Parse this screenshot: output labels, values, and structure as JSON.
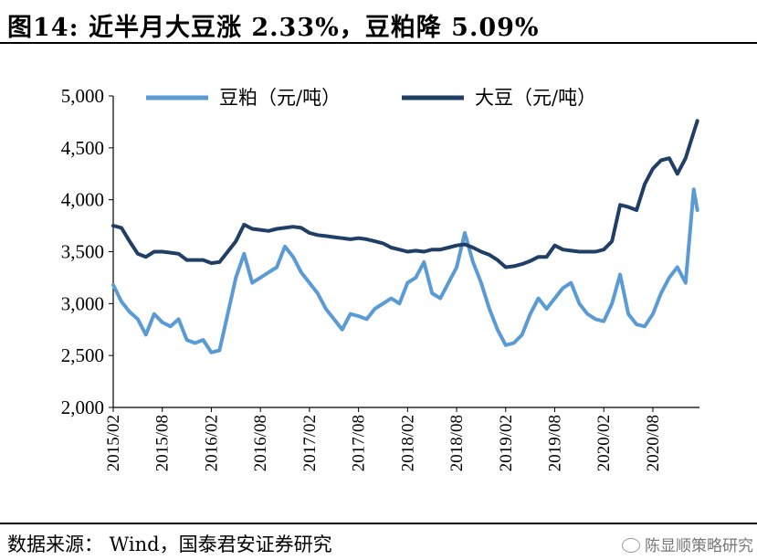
{
  "title": "图14: 近半月大豆涨 2.33%，豆粕降 5.09%",
  "source": "数据来源： Wind，国泰君安证券研究",
  "watermark": "陈显顺策略研究",
  "chart_data": {
    "type": "line",
    "ylim": [
      2000,
      5000
    ],
    "yticks": [
      2000,
      2500,
      3000,
      3500,
      4000,
      4500,
      5000
    ],
    "ytick_labels": [
      "2,000",
      "2,500",
      "3,000",
      "3,500",
      "4,000",
      "4,500",
      "5,000"
    ],
    "xticks": [
      "2015/02",
      "2015/08",
      "2016/02",
      "2016/08",
      "2017/02",
      "2017/08",
      "2018/02",
      "2018/08",
      "2019/02",
      "2019/08",
      "2020/02",
      "2020/08"
    ],
    "legend_position": "top",
    "series": [
      {
        "name": "豆粕（元/吨）",
        "color": "#5b9bd5",
        "points": [
          [
            "2015/02",
            3180
          ],
          [
            "2015/03",
            3020
          ],
          [
            "2015/04",
            2920
          ],
          [
            "2015/05",
            2850
          ],
          [
            "2015/06",
            2700
          ],
          [
            "2015/07",
            2900
          ],
          [
            "2015/08",
            2820
          ],
          [
            "2015/09",
            2780
          ],
          [
            "2015/10",
            2850
          ],
          [
            "2015/11",
            2650
          ],
          [
            "2015/12",
            2620
          ],
          [
            "2016/01",
            2650
          ],
          [
            "2016/02",
            2530
          ],
          [
            "2016/03",
            2550
          ],
          [
            "2016/04",
            2900
          ],
          [
            "2016/05",
            3250
          ],
          [
            "2016/06",
            3480
          ],
          [
            "2016/07",
            3200
          ],
          [
            "2016/08",
            3250
          ],
          [
            "2016/09",
            3300
          ],
          [
            "2016/10",
            3350
          ],
          [
            "2016/11",
            3550
          ],
          [
            "2016/12",
            3450
          ],
          [
            "2017/01",
            3300
          ],
          [
            "2017/02",
            3200
          ],
          [
            "2017/03",
            3100
          ],
          [
            "2017/04",
            2950
          ],
          [
            "2017/05",
            2850
          ],
          [
            "2017/06",
            2750
          ],
          [
            "2017/07",
            2900
          ],
          [
            "2017/08",
            2880
          ],
          [
            "2017/09",
            2850
          ],
          [
            "2017/10",
            2950
          ],
          [
            "2017/11",
            3000
          ],
          [
            "2017/12",
            3050
          ],
          [
            "2018/01",
            3000
          ],
          [
            "2018/02",
            3200
          ],
          [
            "2018/03",
            3250
          ],
          [
            "2018/04",
            3400
          ],
          [
            "2018/05",
            3100
          ],
          [
            "2018/06",
            3050
          ],
          [
            "2018/07",
            3200
          ],
          [
            "2018/08",
            3350
          ],
          [
            "2018/09",
            3680
          ],
          [
            "2018/10",
            3400
          ],
          [
            "2018/11",
            3200
          ],
          [
            "2018/12",
            2950
          ],
          [
            "2019/01",
            2750
          ],
          [
            "2019/02",
            2600
          ],
          [
            "2019/03",
            2620
          ],
          [
            "2019/04",
            2700
          ],
          [
            "2019/05",
            2900
          ],
          [
            "2019/06",
            3050
          ],
          [
            "2019/07",
            2950
          ],
          [
            "2019/08",
            3050
          ],
          [
            "2019/09",
            3150
          ],
          [
            "2019/10",
            3200
          ],
          [
            "2019/11",
            3000
          ],
          [
            "2019/12",
            2900
          ],
          [
            "2020/01",
            2850
          ],
          [
            "2020/02",
            2830
          ],
          [
            "2020/03",
            3000
          ],
          [
            "2020/04",
            3280
          ],
          [
            "2020/05",
            2900
          ],
          [
            "2020/06",
            2800
          ],
          [
            "2020/07",
            2780
          ],
          [
            "2020/08",
            2900
          ],
          [
            "2020/09",
            3100
          ],
          [
            "2020/10",
            3250
          ],
          [
            "2020/11",
            3350
          ],
          [
            "2020/12",
            3200
          ],
          [
            "2021/01",
            4100
          ],
          [
            "2021/01",
            3900
          ]
        ]
      },
      {
        "name": "大豆（元/吨）",
        "color": "#1f3f66",
        "points": [
          [
            "2015/02",
            3750
          ],
          [
            "2015/03",
            3730
          ],
          [
            "2015/04",
            3600
          ],
          [
            "2015/05",
            3480
          ],
          [
            "2015/06",
            3450
          ],
          [
            "2015/07",
            3500
          ],
          [
            "2015/08",
            3500
          ],
          [
            "2015/09",
            3490
          ],
          [
            "2015/10",
            3480
          ],
          [
            "2015/11",
            3420
          ],
          [
            "2015/12",
            3420
          ],
          [
            "2016/01",
            3420
          ],
          [
            "2016/02",
            3390
          ],
          [
            "2016/03",
            3400
          ],
          [
            "2016/04",
            3500
          ],
          [
            "2016/05",
            3600
          ],
          [
            "2016/06",
            3760
          ],
          [
            "2016/07",
            3720
          ],
          [
            "2016/08",
            3710
          ],
          [
            "2016/09",
            3700
          ],
          [
            "2016/10",
            3720
          ],
          [
            "2016/11",
            3730
          ],
          [
            "2016/12",
            3740
          ],
          [
            "2017/01",
            3730
          ],
          [
            "2017/02",
            3680
          ],
          [
            "2017/03",
            3660
          ],
          [
            "2017/04",
            3650
          ],
          [
            "2017/05",
            3640
          ],
          [
            "2017/06",
            3630
          ],
          [
            "2017/07",
            3620
          ],
          [
            "2017/08",
            3630
          ],
          [
            "2017/09",
            3620
          ],
          [
            "2017/10",
            3600
          ],
          [
            "2017/11",
            3580
          ],
          [
            "2017/12",
            3540
          ],
          [
            "2018/01",
            3520
          ],
          [
            "2018/02",
            3500
          ],
          [
            "2018/03",
            3510
          ],
          [
            "2018/04",
            3500
          ],
          [
            "2018/05",
            3520
          ],
          [
            "2018/06",
            3520
          ],
          [
            "2018/07",
            3540
          ],
          [
            "2018/08",
            3560
          ],
          [
            "2018/09",
            3570
          ],
          [
            "2018/10",
            3540
          ],
          [
            "2018/11",
            3500
          ],
          [
            "2018/12",
            3470
          ],
          [
            "2019/01",
            3420
          ],
          [
            "2019/02",
            3350
          ],
          [
            "2019/03",
            3360
          ],
          [
            "2019/04",
            3380
          ],
          [
            "2019/05",
            3410
          ],
          [
            "2019/06",
            3450
          ],
          [
            "2019/07",
            3450
          ],
          [
            "2019/08",
            3560
          ],
          [
            "2019/09",
            3520
          ],
          [
            "2019/10",
            3510
          ],
          [
            "2019/11",
            3500
          ],
          [
            "2019/12",
            3500
          ],
          [
            "2020/01",
            3500
          ],
          [
            "2020/02",
            3520
          ],
          [
            "2020/03",
            3600
          ],
          [
            "2020/04",
            3950
          ],
          [
            "2020/05",
            3930
          ],
          [
            "2020/06",
            3900
          ],
          [
            "2020/07",
            4150
          ],
          [
            "2020/08",
            4300
          ],
          [
            "2020/09",
            4380
          ],
          [
            "2020/10",
            4400
          ],
          [
            "2020/11",
            4250
          ],
          [
            "2020/12",
            4400
          ],
          [
            "2021/01",
            4650
          ],
          [
            "2021/01",
            4760
          ]
        ]
      }
    ]
  }
}
